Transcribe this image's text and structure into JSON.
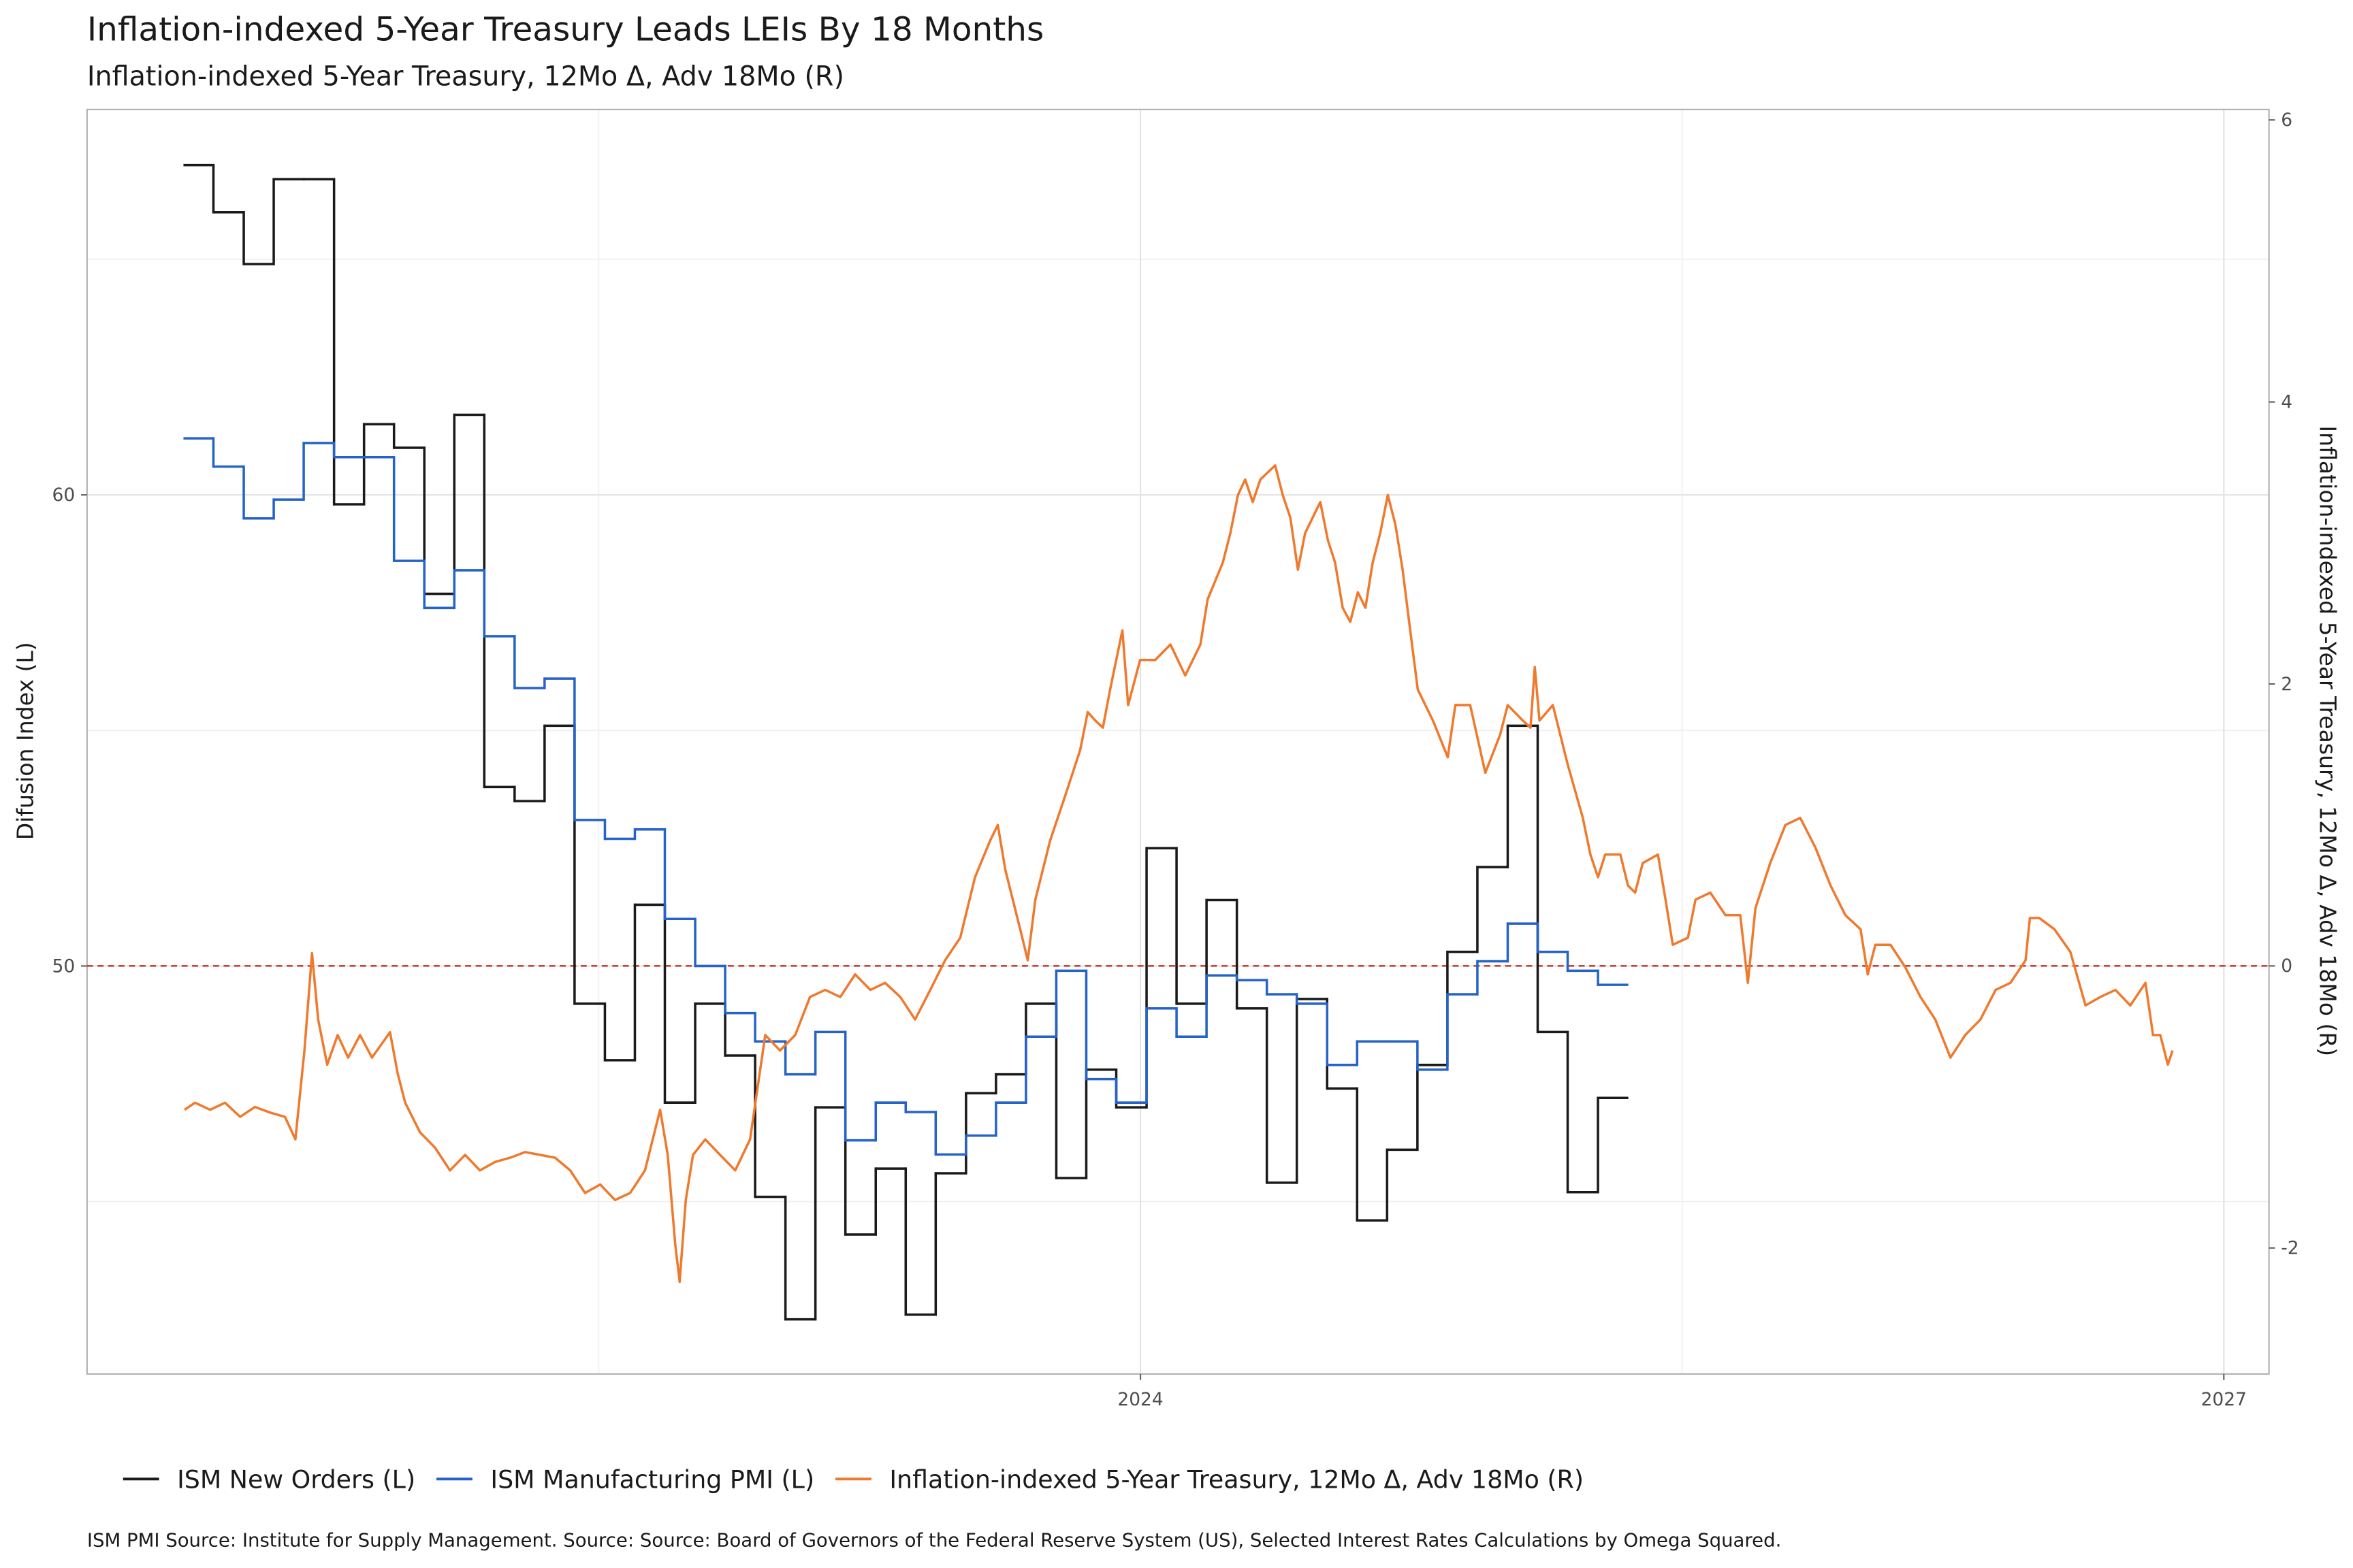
{
  "chart_data": {
    "type": "line",
    "title": "Inflation-indexed 5-Year Treasury  Leads LEIs By  18  Months",
    "subtitle": "Inflation-indexed 5-Year Treasury, 12Mo Δ, Adv 18Mo (R)",
    "y_label": "Difusion Index (L)",
    "y2_label": "Inflation-indexed 5-Year Treasury, 12Mo Δ, Adv 18Mo (R)",
    "caption": "ISM PMI Source: Institute for Supply Management. Source: Source: Board of Governors of the Federal Reserve System (US), Selected Interest Rates Calculations by Omega Squared.",
    "xlim": [
      2021.083,
      2027.125
    ],
    "xticks": [
      2024,
      2027
    ],
    "xminor": [
      2022.5,
      2025.5
    ],
    "ylim": [
      41.34,
      68.18
    ],
    "yticks": [
      50,
      60
    ],
    "yminor": [
      45,
      55,
      65
    ],
    "y2lim": [
      -2.894,
      6.074
    ],
    "y2ticks": [
      -2,
      0,
      2,
      4,
      6
    ],
    "grid": true,
    "legend": "bottom",
    "hline": {
      "value": 0,
      "axis": "y2",
      "color": "#c8453c",
      "dashed": true
    },
    "series": [
      {
        "name": "ISM New Orders (L)",
        "color": "#1a1a1a",
        "step": true,
        "x": [
          2021.35,
          2021.433,
          2021.517,
          2021.6,
          2021.683,
          2021.767,
          2021.85,
          2021.933,
          2022.017,
          2022.1,
          2022.183,
          2022.267,
          2022.35,
          2022.433,
          2022.517,
          2022.6,
          2022.683,
          2022.767,
          2022.85,
          2022.933,
          2023.017,
          2023.1,
          2023.183,
          2023.267,
          2023.35,
          2023.433,
          2023.517,
          2023.6,
          2023.683,
          2023.767,
          2023.85,
          2023.933,
          2024.017,
          2024.1,
          2024.183,
          2024.267,
          2024.35,
          2024.433,
          2024.517,
          2024.6,
          2024.683,
          2024.767,
          2024.85,
          2024.933,
          2025.017,
          2025.1,
          2025.183,
          2025.267
        ],
        "values": [
          67.0,
          66.0,
          64.9,
          66.7,
          66.7,
          59.8,
          61.5,
          61.0,
          57.9,
          61.7,
          53.8,
          53.5,
          55.1,
          49.2,
          48.0,
          51.3,
          47.1,
          49.2,
          48.1,
          45.1,
          42.5,
          47.0,
          44.3,
          45.7,
          42.6,
          45.6,
          47.3,
          47.7,
          49.2,
          45.5,
          47.8,
          47.0,
          52.5,
          49.2,
          51.4,
          49.1,
          45.4,
          49.3,
          47.4,
          44.6,
          46.1,
          47.9,
          50.3,
          52.1,
          55.1,
          48.6,
          45.2,
          47.2
        ]
      },
      {
        "name": "ISM Manufacturing PMI (L)",
        "color": "#2563c9",
        "step": true,
        "x": [
          2021.35,
          2021.433,
          2021.517,
          2021.6,
          2021.683,
          2021.767,
          2021.85,
          2021.933,
          2022.017,
          2022.1,
          2022.183,
          2022.267,
          2022.35,
          2022.433,
          2022.517,
          2022.6,
          2022.683,
          2022.767,
          2022.85,
          2022.933,
          2023.017,
          2023.1,
          2023.183,
          2023.267,
          2023.35,
          2023.433,
          2023.517,
          2023.6,
          2023.683,
          2023.767,
          2023.85,
          2023.933,
          2024.017,
          2024.1,
          2024.183,
          2024.267,
          2024.35,
          2024.433,
          2024.517,
          2024.6,
          2024.683,
          2024.767,
          2024.85,
          2024.933,
          2025.017,
          2025.1,
          2025.183,
          2025.267
        ],
        "values": [
          61.2,
          60.6,
          59.5,
          59.9,
          61.1,
          60.8,
          60.8,
          58.6,
          57.6,
          58.4,
          57.0,
          55.9,
          56.1,
          53.1,
          52.7,
          52.9,
          51.0,
          50.0,
          49.0,
          48.4,
          47.7,
          48.6,
          46.3,
          47.1,
          46.9,
          46.0,
          46.4,
          47.1,
          48.5,
          49.9,
          47.6,
          47.1,
          49.1,
          48.5,
          49.8,
          49.7,
          49.4,
          49.2,
          47.9,
          48.4,
          48.4,
          47.8,
          49.4,
          50.1,
          50.9,
          50.3,
          49.9,
          49.6
        ]
      },
      {
        "name": "Inflation-indexed 5-Year Treasury, 12Mo Δ, Adv 18Mo (R)",
        "color": "#ef7a2e",
        "axis": "y2",
        "x": [
          2021.353,
          2021.382,
          2021.424,
          2021.465,
          2021.507,
          2021.548,
          2021.59,
          2021.631,
          2021.66,
          2021.685,
          2021.706,
          2021.723,
          2021.748,
          2021.777,
          2021.806,
          2021.839,
          2021.872,
          2021.922,
          2021.943,
          2021.964,
          2022.005,
          2022.047,
          2022.088,
          2022.13,
          2022.171,
          2022.213,
          2022.255,
          2022.296,
          2022.338,
          2022.379,
          2022.421,
          2022.462,
          2022.504,
          2022.545,
          2022.587,
          2022.628,
          2022.67,
          2022.691,
          2022.712,
          2022.724,
          2022.741,
          2022.761,
          2022.795,
          2022.836,
          2022.878,
          2022.919,
          2022.961,
          2023.002,
          2023.044,
          2023.085,
          2023.127,
          2023.169,
          2023.21,
          2023.252,
          2023.293,
          2023.335,
          2023.376,
          2023.418,
          2023.459,
          2023.501,
          2023.542,
          2023.584,
          2023.605,
          2023.626,
          2023.667,
          2023.688,
          2023.709,
          2023.75,
          2023.792,
          2023.833,
          2023.854,
          2023.875,
          2023.896,
          2023.916,
          2023.95,
          2023.966,
          2023.999,
          2024.041,
          2024.083,
          2024.124,
          2024.166,
          2024.186,
          2024.228,
          2024.249,
          2024.27,
          2024.29,
          2024.311,
          2024.332,
          2024.373,
          2024.394,
          2024.415,
          2024.436,
          2024.456,
          2024.498,
          2024.519,
          2024.539,
          2024.56,
          2024.581,
          2024.602,
          2024.623,
          2024.643,
          2024.664,
          2024.685,
          2024.706,
          2024.726,
          2024.747,
          2024.768,
          2024.81,
          2024.851,
          2024.872,
          2024.913,
          2024.955,
          2024.996,
          2025.017,
          2025.059,
          2025.08,
          2025.092,
          2025.105,
          2025.142,
          2025.183,
          2025.225,
          2025.246,
          2025.267,
          2025.287,
          2025.329,
          2025.35,
          2025.37,
          2025.391,
          2025.433,
          2025.454,
          2025.474,
          2025.516,
          2025.537,
          2025.578,
          2025.62,
          2025.661,
          2025.682,
          2025.703,
          2025.744,
          2025.786,
          2025.827,
          2025.869,
          2025.911,
          2025.952,
          2025.994,
          2026.014,
          2026.035,
          2026.077,
          2026.118,
          2026.16,
          2026.201,
          2026.243,
          2026.284,
          2026.326,
          2026.368,
          2026.409,
          2026.451,
          2026.463,
          2026.489,
          2026.531,
          2026.575,
          2026.617,
          2026.658,
          2026.7,
          2026.741,
          2026.783,
          2026.804,
          2026.824,
          2026.845,
          2026.858
        ],
        "values": [
          -1.02,
          -0.97,
          -1.02,
          -0.97,
          -1.07,
          -1.0,
          -1.04,
          -1.07,
          -1.23,
          -0.6,
          0.09,
          -0.38,
          -0.7,
          -0.49,
          -0.65,
          -0.49,
          -0.65,
          -0.47,
          -0.76,
          -0.97,
          -1.18,
          -1.29,
          -1.45,
          -1.34,
          -1.45,
          -1.39,
          -1.36,
          -1.32,
          -1.34,
          -1.36,
          -1.45,
          -1.61,
          -1.55,
          -1.66,
          -1.61,
          -1.45,
          -1.02,
          -1.34,
          -1.98,
          -2.24,
          -1.66,
          -1.34,
          -1.23,
          -1.34,
          -1.45,
          -1.23,
          -0.49,
          -0.6,
          -0.49,
          -0.22,
          -0.17,
          -0.22,
          -0.06,
          -0.17,
          -0.12,
          -0.22,
          -0.38,
          -0.17,
          0.04,
          0.2,
          0.63,
          0.89,
          1.0,
          0.68,
          0.26,
          0.04,
          0.47,
          0.89,
          1.21,
          1.53,
          1.8,
          1.74,
          1.69,
          1.96,
          2.38,
          1.85,
          2.17,
          2.17,
          2.28,
          2.06,
          2.28,
          2.6,
          2.86,
          3.07,
          3.34,
          3.45,
          3.29,
          3.45,
          3.55,
          3.34,
          3.18,
          2.81,
          3.07,
          3.29,
          3.02,
          2.86,
          2.54,
          2.44,
          2.65,
          2.54,
          2.86,
          3.07,
          3.34,
          3.13,
          2.81,
          2.38,
          1.96,
          1.74,
          1.48,
          1.85,
          1.85,
          1.37,
          1.64,
          1.85,
          1.74,
          1.69,
          2.12,
          1.74,
          1.85,
          1.43,
          1.05,
          0.79,
          0.63,
          0.79,
          0.79,
          0.57,
          0.52,
          0.73,
          0.79,
          0.47,
          0.15,
          0.2,
          0.47,
          0.52,
          0.36,
          0.36,
          -0.12,
          0.41,
          0.73,
          1.0,
          1.05,
          0.84,
          0.57,
          0.36,
          0.26,
          -0.06,
          0.15,
          0.15,
          -0.01,
          -0.22,
          -0.38,
          -0.65,
          -0.49,
          -0.38,
          -0.17,
          -0.12,
          0.04,
          0.34,
          0.34,
          0.26,
          0.1,
          -0.28,
          -0.22,
          -0.17,
          -0.28,
          -0.12,
          -0.49,
          -0.49,
          -0.7,
          -0.6
        ]
      }
    ]
  }
}
